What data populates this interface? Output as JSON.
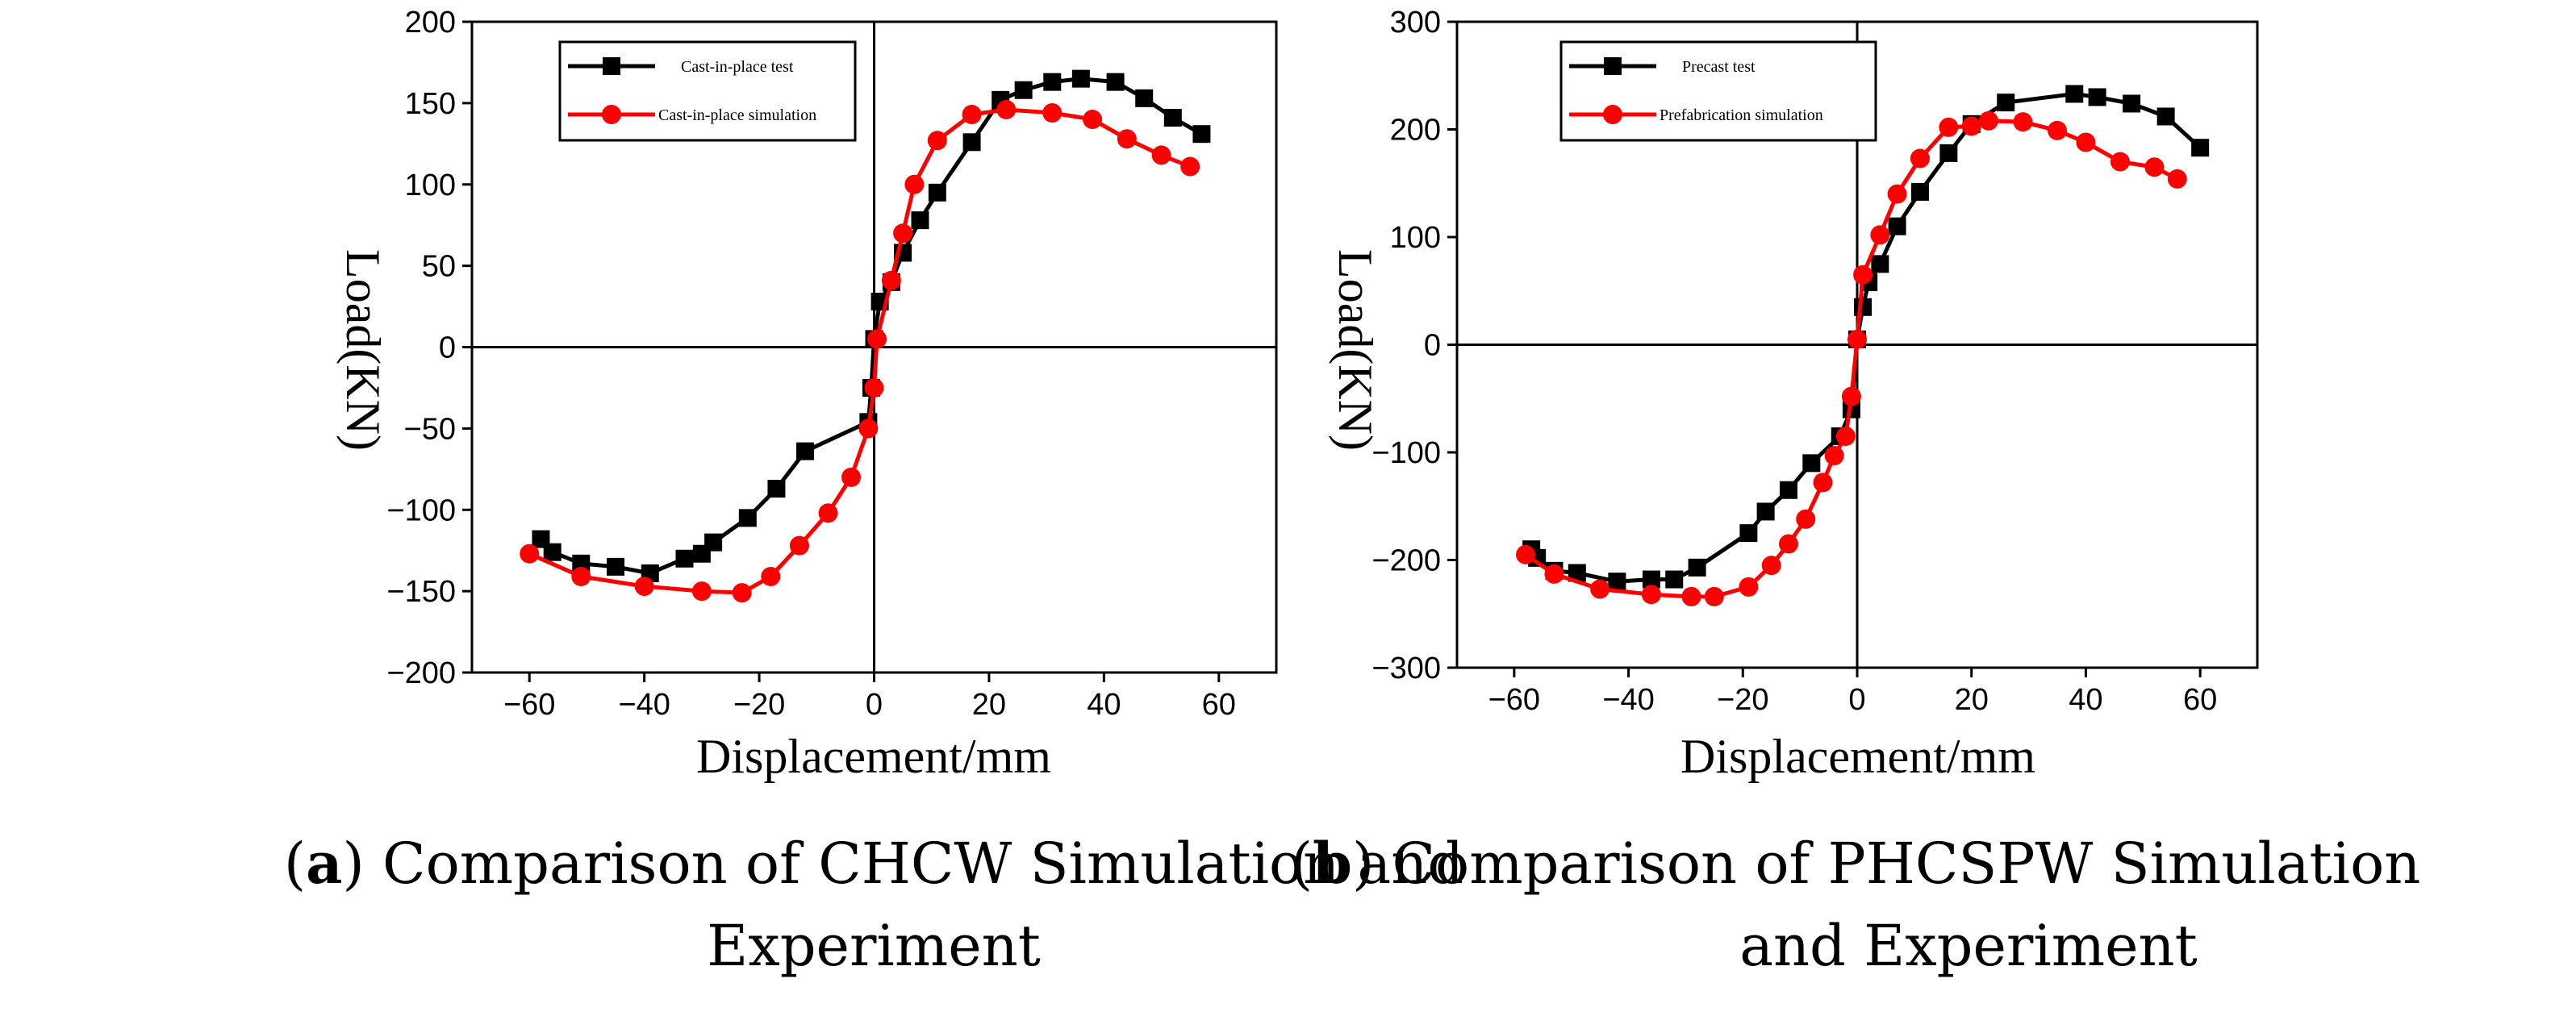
{
  "chart_data": [
    {
      "type": "line",
      "panel": "a",
      "caption_letter": "a",
      "caption_line1": ") Comparison of CHCW Simulation and",
      "caption_line2": "Experiment",
      "xlabel": "Displacement/mm",
      "ylabel": "Load(KN)",
      "xlim": [
        -70,
        70
      ],
      "ylim": [
        -200,
        200
      ],
      "xticks": [
        -60,
        -40,
        -20,
        0,
        20,
        40,
        60
      ],
      "yticks": [
        -200,
        -150,
        -100,
        -50,
        0,
        50,
        100,
        150,
        200
      ],
      "xtick_labels": [
        "−60",
        "−40",
        "−20",
        "0",
        "20",
        "40",
        "60"
      ],
      "ytick_labels": [
        "−200",
        "−150",
        "−100",
        "−50",
        "0",
        "50",
        "100",
        "150",
        "200"
      ],
      "legend": "top-left",
      "series": [
        {
          "name": "Cast-in-place test",
          "color": "#000000",
          "marker": "square",
          "x": [
            -58,
            -56,
            -51,
            -45,
            -39,
            -33,
            -30,
            -28,
            -22,
            -17,
            -12,
            -1,
            -0.5,
            0,
            1,
            3,
            5,
            8,
            11,
            17,
            22,
            26,
            31,
            36,
            42,
            47,
            52,
            57
          ],
          "y": [
            -118,
            -126,
            -133,
            -135,
            -139,
            -130,
            -127,
            -120,
            -105,
            -87,
            -64,
            -46,
            -25,
            5,
            28,
            40,
            58,
            78,
            95,
            126,
            152,
            158,
            163,
            165,
            163,
            153,
            141,
            131
          ]
        },
        {
          "name": "Cast-in-place simulation",
          "color": "#ff0000",
          "marker": "circle",
          "x": [
            -60,
            -51,
            -40,
            -30,
            -23,
            -18,
            -13,
            -8,
            -4,
            -1,
            0,
            0.5,
            3,
            5,
            7,
            11,
            17,
            23,
            31,
            38,
            44,
            50,
            55
          ],
          "y": [
            -127,
            -141,
            -147,
            -150,
            -151,
            -141,
            -122,
            -102,
            -80,
            -50,
            -25,
            5,
            41,
            70,
            100,
            127,
            143,
            146,
            144,
            140,
            128,
            118,
            111
          ]
        }
      ]
    },
    {
      "type": "line",
      "panel": "b",
      "caption_letter": "b",
      "caption_line1": ") Comparison of PHCSPW Simulation",
      "caption_line2": "and Experiment",
      "xlabel": "Displacement/mm",
      "ylabel": "Load(KN)",
      "xlim": [
        -70,
        70
      ],
      "ylim": [
        -300,
        300
      ],
      "xticks": [
        -60,
        -40,
        -20,
        0,
        20,
        40,
        60
      ],
      "yticks": [
        -300,
        -200,
        -100,
        0,
        100,
        200,
        300
      ],
      "xtick_labels": [
        "−60",
        "−40",
        "−20",
        "0",
        "20",
        "40",
        "60"
      ],
      "ytick_labels": [
        "−300",
        "−200",
        "−100",
        "0",
        "100",
        "200",
        "300"
      ],
      "legend": "top-left",
      "series": [
        {
          "name": "Precast test",
          "color": "#000000",
          "marker": "square",
          "x": [
            -57,
            -56,
            -53,
            -49,
            -42,
            -36,
            -32,
            -28,
            -19,
            -16,
            -12,
            -8,
            -3,
            -1,
            0,
            1,
            2,
            4,
            7,
            11,
            16,
            20,
            26,
            38,
            42,
            48,
            54,
            60
          ],
          "y": [
            -190,
            -198,
            -210,
            -212,
            -220,
            -218,
            -218,
            -207,
            -175,
            -155,
            -135,
            -110,
            -85,
            -60,
            5,
            35,
            58,
            75,
            110,
            142,
            178,
            205,
            225,
            233,
            230,
            224,
            212,
            183
          ]
        },
        {
          "name": "Prefabrication simulation",
          "color": "#ff0000",
          "marker": "circle",
          "x": [
            -58,
            -53,
            -45,
            -36,
            -29,
            -25,
            -19,
            -15,
            -12,
            -9,
            -6,
            -4,
            -2,
            -1,
            0,
            1,
            4,
            7,
            11,
            16,
            20,
            23,
            29,
            35,
            40,
            46,
            52,
            56
          ],
          "y": [
            -195,
            -213,
            -227,
            -232,
            -234,
            -234,
            -225,
            -205,
            -185,
            -162,
            -128,
            -103,
            -85,
            -48,
            5,
            65,
            102,
            140,
            173,
            202,
            203,
            208,
            207,
            199,
            188,
            170,
            165,
            154
          ]
        }
      ]
    }
  ]
}
